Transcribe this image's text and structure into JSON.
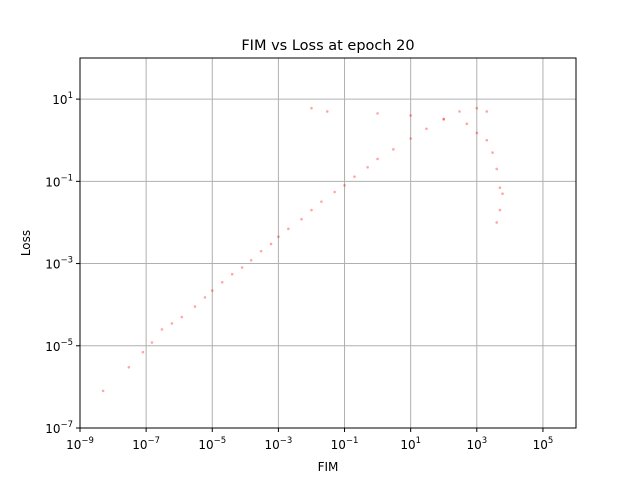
{
  "chart_data": {
    "type": "scatter",
    "title": "FIM vs Loss at epoch 20",
    "xlabel": "FIM",
    "ylabel": "Loss",
    "xscale": "log",
    "yscale": "log",
    "xlim": [
      1e-09,
      1000000.0
    ],
    "ylim": [
      1e-07,
      100.0
    ],
    "x_ticks": [
      {
        "value": 1e-09,
        "base": "10",
        "exp": "−9"
      },
      {
        "value": 1e-07,
        "base": "10",
        "exp": "−7"
      },
      {
        "value": 1e-05,
        "base": "10",
        "exp": "−5"
      },
      {
        "value": 0.001,
        "base": "10",
        "exp": "−3"
      },
      {
        "value": 0.1,
        "base": "10",
        "exp": "−1"
      },
      {
        "value": 10.0,
        "base": "10",
        "exp": "1"
      },
      {
        "value": 1000.0,
        "base": "10",
        "exp": "3"
      },
      {
        "value": 100000.0,
        "base": "10",
        "exp": "5"
      }
    ],
    "y_ticks": [
      {
        "value": 1e-07,
        "base": "10",
        "exp": "−7"
      },
      {
        "value": 1e-05,
        "base": "10",
        "exp": "−5"
      },
      {
        "value": 0.001,
        "base": "10",
        "exp": "−3"
      },
      {
        "value": 0.1,
        "base": "10",
        "exp": "−1"
      },
      {
        "value": 10.0,
        "base": "10",
        "exp": "1"
      }
    ],
    "grid": true,
    "series": [
      {
        "color": "#ff0000",
        "marker": "dot",
        "alpha": 0.35,
        "points": [
          [
            5e-09,
            8e-07
          ],
          [
            3e-08,
            3e-06
          ],
          [
            8e-08,
            7e-06
          ],
          [
            1.5e-07,
            1.2e-05
          ],
          [
            3e-07,
            2.5e-05
          ],
          [
            6e-07,
            3.5e-05
          ],
          [
            1.2e-06,
            5e-05
          ],
          [
            3e-06,
            9e-05
          ],
          [
            6e-06,
            0.00015
          ],
          [
            1e-05,
            0.00022
          ],
          [
            2e-05,
            0.00035
          ],
          [
            4e-05,
            0.00055
          ],
          [
            8e-05,
            0.0008
          ],
          [
            0.00015,
            0.0012
          ],
          [
            0.0003,
            0.002
          ],
          [
            0.0006,
            0.003
          ],
          [
            0.001,
            0.0045
          ],
          [
            0.002,
            0.007
          ],
          [
            0.005,
            0.012
          ],
          [
            0.01,
            0.02
          ],
          [
            0.02,
            0.032
          ],
          [
            0.05,
            0.055
          ],
          [
            0.1,
            0.08
          ],
          [
            0.2,
            0.13
          ],
          [
            0.5,
            0.22
          ],
          [
            1,
            0.35
          ],
          [
            3,
            0.6
          ],
          [
            10.0,
            1.1
          ],
          [
            30.0,
            1.9
          ],
          [
            100.0,
            3.2
          ],
          [
            300.0,
            5.0
          ],
          [
            1000.0,
            6.0
          ],
          [
            2000.0,
            5.0
          ],
          [
            0.01,
            6
          ],
          [
            0.03,
            5
          ],
          [
            1,
            4.5
          ],
          [
            10.0,
            4
          ],
          [
            100.0,
            3.3
          ],
          [
            500.0,
            2.5
          ],
          [
            1000.0,
            1.5
          ],
          [
            2000.0,
            1
          ],
          [
            3000.0,
            0.5
          ],
          [
            4000.0,
            0.2
          ],
          [
            5000.0,
            0.07
          ],
          [
            5000.0,
            0.02
          ],
          [
            6000.0,
            0.05
          ],
          [
            4000.0,
            0.01
          ]
        ]
      }
    ]
  }
}
